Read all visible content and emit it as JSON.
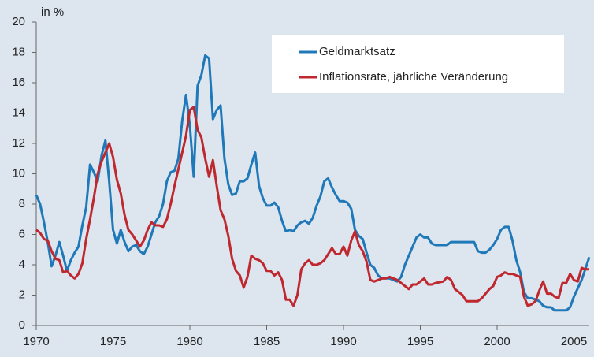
{
  "chart_data": {
    "type": "line",
    "y_label": "in %",
    "xlim": [
      1970,
      2006
    ],
    "ylim": [
      0,
      20
    ],
    "xticks": [
      1970,
      1975,
      1980,
      1985,
      1990,
      1995,
      2000,
      2005
    ],
    "yticks": [
      0,
      2,
      4,
      6,
      8,
      10,
      12,
      14,
      16,
      18,
      20
    ],
    "legend": "upper right",
    "series": [
      {
        "name": "Geldmarktsatz",
        "color": "#1f78b8",
        "x": [
          1970,
          1970.25,
          1970.5,
          1970.75,
          1971,
          1971.25,
          1971.5,
          1971.75,
          1972,
          1972.25,
          1972.5,
          1972.75,
          1973,
          1973.25,
          1973.5,
          1973.75,
          1974,
          1974.25,
          1974.5,
          1974.75,
          1975,
          1975.25,
          1975.5,
          1975.75,
          1976,
          1976.25,
          1976.5,
          1976.75,
          1977,
          1977.25,
          1977.5,
          1977.75,
          1978,
          1978.25,
          1978.5,
          1978.75,
          1979,
          1979.25,
          1979.5,
          1979.75,
          1980,
          1980.25,
          1980.5,
          1980.75,
          1981,
          1981.25,
          1981.5,
          1981.75,
          1982,
          1982.25,
          1982.5,
          1982.75,
          1983,
          1983.25,
          1983.5,
          1983.75,
          1984,
          1984.25,
          1984.5,
          1984.75,
          1985,
          1985.25,
          1985.5,
          1985.75,
          1986,
          1986.25,
          1986.5,
          1986.75,
          1987,
          1987.25,
          1987.5,
          1987.75,
          1988,
          1988.25,
          1988.5,
          1988.75,
          1989,
          1989.25,
          1989.5,
          1989.75,
          1990,
          1990.25,
          1990.5,
          1990.75,
          1991,
          1991.25,
          1991.5,
          1991.75,
          1992,
          1992.25,
          1992.5,
          1992.75,
          1993,
          1993.25,
          1993.5,
          1993.75,
          1994,
          1994.25,
          1994.5,
          1994.75,
          1995,
          1995.25,
          1995.5,
          1995.75,
          1996,
          1996.25,
          1996.5,
          1996.75,
          1997,
          1997.5,
          1998,
          1998.5,
          1998.75,
          1999,
          1999.25,
          1999.5,
          1999.75,
          2000,
          2000.25,
          2000.5,
          2000.75,
          2001,
          2001.25,
          2001.5,
          2001.75,
          2002,
          2002.25,
          2002.5,
          2002.75,
          2003,
          2003.25,
          2003.5,
          2003.75,
          2004,
          2004.5,
          2004.75,
          2005,
          2005.5,
          2006
        ],
        "values": [
          8.6,
          8.0,
          6.8,
          5.5,
          3.9,
          4.6,
          5.5,
          4.6,
          3.6,
          4.3,
          4.8,
          5.2,
          6.6,
          7.8,
          10.6,
          10.1,
          9.5,
          11.2,
          12.2,
          9.5,
          6.3,
          5.4,
          6.3,
          5.5,
          4.9,
          5.2,
          5.3,
          4.9,
          4.7,
          5.2,
          6.0,
          6.8,
          7.2,
          8.0,
          9.5,
          10.1,
          10.2,
          11.0,
          13.5,
          15.2,
          13.2,
          9.8,
          15.8,
          16.5,
          17.8,
          17.6,
          13.6,
          14.2,
          14.5,
          11.0,
          9.3,
          8.6,
          8.7,
          9.5,
          9.5,
          9.7,
          10.6,
          11.4,
          9.2,
          8.4,
          7.9,
          7.9,
          8.1,
          7.8,
          6.9,
          6.2,
          6.3,
          6.2,
          6.6,
          6.8,
          6.9,
          6.7,
          7.1,
          7.9,
          8.5,
          9.5,
          9.7,
          9.1,
          8.6,
          8.2,
          8.2,
          8.1,
          7.7,
          6.3,
          5.9,
          5.7,
          4.8,
          4.0,
          3.8,
          3.3,
          3.1,
          3.1,
          3.1,
          3.0,
          2.9,
          3.2,
          4.0,
          4.6,
          5.2,
          5.8,
          6.0,
          5.8,
          5.8,
          5.4,
          5.3,
          5.3,
          5.3,
          5.3,
          5.5,
          5.5,
          5.5,
          5.5,
          4.9,
          4.8,
          4.8,
          5.0,
          5.3,
          5.7,
          6.3,
          6.5,
          6.5,
          5.6,
          4.3,
          3.5,
          2.2,
          1.8,
          1.8,
          1.7,
          1.6,
          1.3,
          1.2,
          1.2,
          1.0,
          1.0,
          1.0,
          1.2,
          1.9,
          3.0,
          4.5
        ]
      },
      {
        "name": "Inflationsrate, jährliche Veränderung",
        "color": "#c0282f",
        "x": [
          1970,
          1970.25,
          1970.5,
          1970.75,
          1971,
          1971.25,
          1971.5,
          1971.75,
          1972,
          1972.25,
          1972.5,
          1972.75,
          1973,
          1973.25,
          1973.5,
          1973.75,
          1974,
          1974.25,
          1974.5,
          1974.75,
          1975,
          1975.25,
          1975.5,
          1975.75,
          1976,
          1976.25,
          1976.5,
          1976.75,
          1977,
          1977.25,
          1977.5,
          1977.75,
          1978,
          1978.25,
          1978.5,
          1978.75,
          1979,
          1979.25,
          1979.5,
          1979.75,
          1980,
          1980.25,
          1980.5,
          1980.75,
          1981,
          1981.25,
          1981.5,
          1981.75,
          1982,
          1982.25,
          1982.5,
          1982.75,
          1983,
          1983.25,
          1983.5,
          1983.75,
          1984,
          1984.25,
          1984.5,
          1984.75,
          1985,
          1985.25,
          1985.5,
          1985.75,
          1986,
          1986.25,
          1986.5,
          1986.75,
          1987,
          1987.25,
          1987.5,
          1987.75,
          1988,
          1988.25,
          1988.5,
          1988.75,
          1989,
          1989.25,
          1989.5,
          1989.75,
          1990,
          1990.25,
          1990.5,
          1990.75,
          1991,
          1991.25,
          1991.5,
          1991.75,
          1992,
          1992.25,
          1992.5,
          1992.75,
          1993,
          1993.5,
          1993.75,
          1994,
          1994.25,
          1994.5,
          1994.75,
          1995,
          1995.25,
          1995.5,
          1995.75,
          1996,
          1996.5,
          1996.75,
          1997,
          1997.25,
          1997.5,
          1997.75,
          1998,
          1998.25,
          1998.5,
          1998.75,
          1999,
          1999.25,
          1999.5,
          1999.75,
          2000,
          2000.25,
          2000.5,
          2000.75,
          2001,
          2001.25,
          2001.5,
          2001.75,
          2002,
          2002.25,
          2002.5,
          2002.75,
          2003,
          2003.25,
          2003.5,
          2003.75,
          2004,
          2004.25,
          2004.5,
          2004.75,
          2005,
          2005.25,
          2005.5,
          2005.75,
          2006
        ],
        "values": [
          6.3,
          6.1,
          5.7,
          5.6,
          4.9,
          4.4,
          4.3,
          3.5,
          3.6,
          3.3,
          3.1,
          3.4,
          4.1,
          5.7,
          7.0,
          8.4,
          10.0,
          10.8,
          11.4,
          12.0,
          11.1,
          9.6,
          8.7,
          7.3,
          6.3,
          6.0,
          5.6,
          5.2,
          5.6,
          6.3,
          6.8,
          6.6,
          6.6,
          6.5,
          7.0,
          8.0,
          9.2,
          10.3,
          11.4,
          12.5,
          14.2,
          14.4,
          12.9,
          12.4,
          11.0,
          9.8,
          10.9,
          9.2,
          7.6,
          7.0,
          5.9,
          4.4,
          3.6,
          3.3,
          2.5,
          3.2,
          4.6,
          4.4,
          4.3,
          4.1,
          3.6,
          3.6,
          3.3,
          3.5,
          3.0,
          1.7,
          1.7,
          1.3,
          2.0,
          3.7,
          4.1,
          4.3,
          4.0,
          4.0,
          4.1,
          4.3,
          4.7,
          5.1,
          4.7,
          4.7,
          5.2,
          4.6,
          5.6,
          6.2,
          5.3,
          4.9,
          4.2,
          3.0,
          2.9,
          3.0,
          3.1,
          3.1,
          3.2,
          3.0,
          2.8,
          2.6,
          2.4,
          2.7,
          2.7,
          2.9,
          3.1,
          2.7,
          2.7,
          2.8,
          2.9,
          3.2,
          3.0,
          2.4,
          2.2,
          2.0,
          1.6,
          1.6,
          1.6,
          1.6,
          1.8,
          2.1,
          2.4,
          2.6,
          3.2,
          3.3,
          3.5,
          3.4,
          3.4,
          3.3,
          3.2,
          1.9,
          1.3,
          1.4,
          1.6,
          2.3,
          2.9,
          2.1,
          2.1,
          1.9,
          1.8,
          2.8,
          2.8,
          3.4,
          3.0,
          2.9,
          3.8,
          3.7,
          3.7
        ]
      }
    ]
  }
}
